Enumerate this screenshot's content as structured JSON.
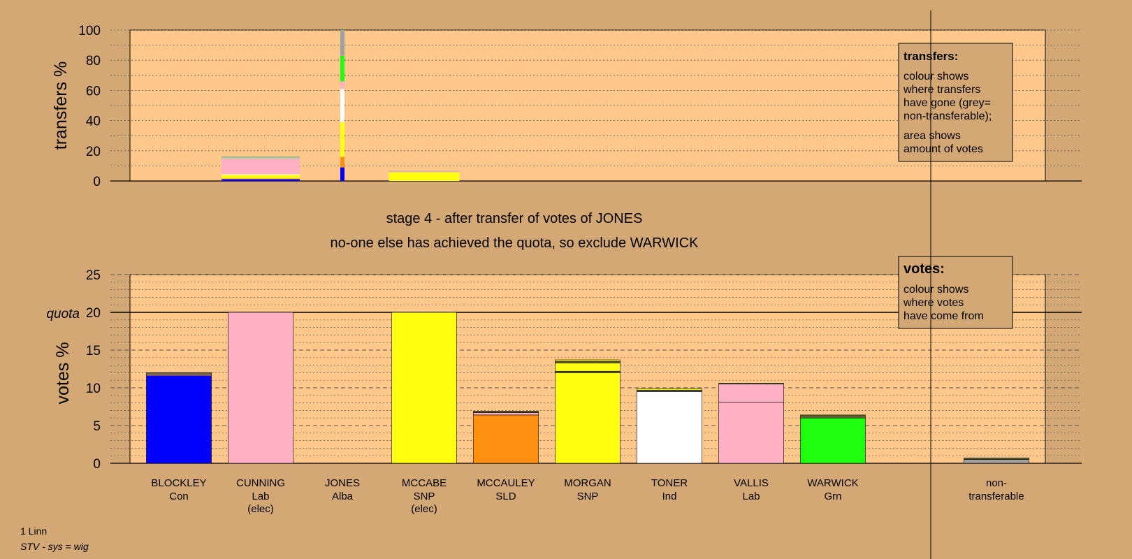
{
  "chart_data": [
    {
      "type": "bar",
      "stacked": true,
      "ylabel": "transfers %",
      "ylim": [
        0,
        100
      ],
      "yticks": [
        0,
        20,
        40,
        60,
        80,
        100
      ],
      "grid": "dotted",
      "legend": {
        "title": "transfers:",
        "lines_1": [
          "colour shows",
          "where transfers",
          "have gone (grey=",
          "non-transferable);"
        ],
        "lines_2": [
          "area shows",
          "amount of votes"
        ]
      },
      "bars": [
        {
          "category": "CUNNING",
          "segments": [
            {
              "color": "#0000ff",
              "value": 1.2
            },
            {
              "color": "#ff9010",
              "value": 0.5
            },
            {
              "color": "#ffff10",
              "value": 2.3
            },
            {
              "color": "#ffffff",
              "value": 0.5
            },
            {
              "color": "#ffb0c4",
              "value": 10.5
            },
            {
              "color": "#7fe07f",
              "value": 0.7
            },
            {
              "color": "#a0a0a0",
              "value": 0.5
            }
          ]
        },
        {
          "category": "JONES",
          "segments": [
            {
              "color": "#0000ff",
              "value": 9
            },
            {
              "color": "#ff9010",
              "value": 7
            },
            {
              "color": "#ffff10",
              "value": 23
            },
            {
              "color": "#ffffff",
              "value": 22
            },
            {
              "color": "#ffb0c4",
              "value": 5
            },
            {
              "color": "#20ff10",
              "value": 17
            },
            {
              "color": "#a0a0a0",
              "value": 17
            }
          ]
        },
        {
          "category": "MCCABE",
          "segments": [
            {
              "color": "#ffff10",
              "value": 5.8
            },
            {
              "color": "#ffb0c4",
              "value": 0.5
            },
            {
              "color": "#a0a0a0",
              "value": 0.3
            }
          ]
        }
      ]
    },
    {
      "type": "bar",
      "stacked": true,
      "ylabel": "votes %",
      "ylim": [
        0,
        25
      ],
      "yticks": [
        0,
        5,
        10,
        15,
        20,
        25
      ],
      "quota": 20,
      "quota_label": "quota",
      "grid": "dotted",
      "legend": {
        "title": "votes:",
        "lines": [
          "colour shows",
          "where votes",
          "have come from"
        ]
      },
      "categories": [
        {
          "name": "BLOCKLEY",
          "party": "Con",
          "note": ""
        },
        {
          "name": "CUNNING",
          "party": "Lab",
          "note": "(elec)"
        },
        {
          "name": "JONES",
          "party": "Alba",
          "note": ""
        },
        {
          "name": "MCCABE",
          "party": "SNP",
          "note": "(elec)"
        },
        {
          "name": "MCCAULEY",
          "party": "SLD",
          "note": ""
        },
        {
          "name": "MORGAN",
          "party": "SNP",
          "note": ""
        },
        {
          "name": "TONER",
          "party": "Ind",
          "note": ""
        },
        {
          "name": "VALLIS",
          "party": "Lab",
          "note": ""
        },
        {
          "name": "WARWICK",
          "party": "Grn",
          "note": ""
        },
        {
          "name": "",
          "party": "",
          "note": ""
        },
        {
          "name": "non-",
          "party": "transferable",
          "note": ""
        }
      ],
      "stacks": [
        [
          {
            "color": "#0000ff",
            "value": 11.6
          },
          {
            "color": "#ffb0c4",
            "value": 0.2
          },
          {
            "color": "#606030",
            "value": 0.2
          }
        ],
        [
          {
            "color": "#ffb0c4",
            "value": 20
          }
        ],
        [],
        [
          {
            "color": "#ffff10",
            "value": 20
          }
        ],
        [
          {
            "color": "#ff9010",
            "value": 6.4
          },
          {
            "color": "#ffb0c4",
            "value": 0.3
          },
          {
            "color": "#606030",
            "value": 0.2
          }
        ],
        [
          {
            "color": "#ffff10",
            "value": 12.0
          },
          {
            "color": "#606030",
            "value": 0.2
          },
          {
            "color": "#ffff10",
            "value": 1.1
          },
          {
            "color": "#606030",
            "value": 0.2
          },
          {
            "color": "#ffff10",
            "value": 0.2
          }
        ],
        [
          {
            "color": "#ffffff",
            "value": 9.5
          },
          {
            "color": "#606030",
            "value": 0.2
          },
          {
            "color": "#ffff10",
            "value": 0.2
          }
        ],
        [
          {
            "color": "#ffb0c4",
            "value": 8.1
          },
          {
            "color": "#ffb0c4",
            "value": 2.4
          },
          {
            "color": "#606030",
            "value": 0.1
          }
        ],
        [
          {
            "color": "#20ff10",
            "value": 6.0
          },
          {
            "color": "#606030",
            "value": 0.4
          }
        ],
        [],
        [
          {
            "color": "#a0a0a0",
            "value": 0.5
          },
          {
            "color": "#606030",
            "value": 0.2
          }
        ]
      ]
    }
  ],
  "stage_title": "stage 4 - after transfer of votes of JONES",
  "stage_subtitle": "no-one else has achieved the quota, so exclude WARWICK",
  "footer": {
    "line1": "1 Linn",
    "line2": "STV - sys = wig"
  }
}
